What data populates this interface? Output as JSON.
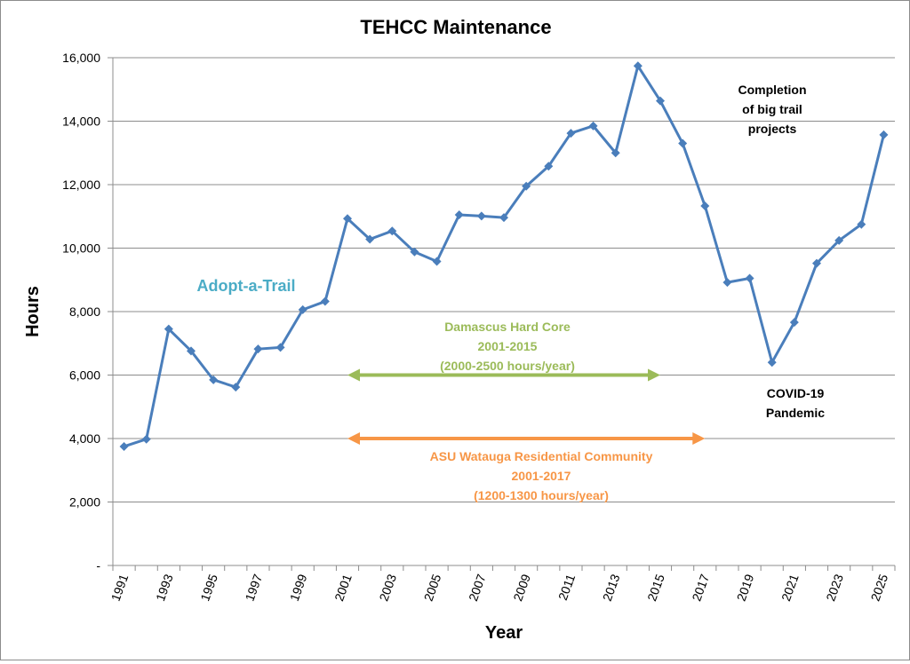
{
  "chart_data": {
    "type": "line",
    "title": "TEHCC Maintenance",
    "xlabel": "Year",
    "ylabel": "Hours",
    "ylim": [
      0,
      16000
    ],
    "ytick_labels": [
      "-",
      "2,000",
      "4,000",
      "6,000",
      "8,000",
      "10,000",
      "12,000",
      "14,000",
      "16,000"
    ],
    "xtick_labels": [
      "1991",
      "1993",
      "1995",
      "1997",
      "1999",
      "2001",
      "2003",
      "2005",
      "2007",
      "2009",
      "2011",
      "2013",
      "2015",
      "2017",
      "2019",
      "2021",
      "2023",
      "2025"
    ],
    "x": [
      1991,
      1992,
      1993,
      1994,
      1995,
      1996,
      1997,
      1998,
      1999,
      2000,
      2001,
      2002,
      2003,
      2004,
      2005,
      2006,
      2007,
      2008,
      2009,
      2010,
      2011,
      2012,
      2013,
      2014,
      2015,
      2016,
      2017,
      2018,
      2019,
      2020,
      2021,
      2022,
      2023,
      2024,
      2025
    ],
    "series": [
      {
        "name": "Hours",
        "color": "#4a7ebb",
        "values": [
          3750,
          3980,
          7450,
          6760,
          5850,
          5620,
          6820,
          6870,
          8060,
          8320,
          10930,
          10280,
          10540,
          9880,
          9580,
          11050,
          11010,
          10960,
          11950,
          12580,
          13620,
          13850,
          13000,
          15740,
          14640,
          13300,
          11330,
          8920,
          9050,
          6400,
          7660,
          9520,
          10240,
          10750,
          13570
        ]
      }
    ],
    "annotations": {
      "adopt": {
        "text": "Adopt-a-Trail",
        "color": "#4bacc6"
      },
      "damascus": {
        "lines": [
          "Damascus Hard Core",
          "2001-2015",
          "(2000-2500 hours/year)"
        ],
        "color": "#9bbb59",
        "x_start": 2001,
        "x_end": 2015,
        "y": 6000
      },
      "asu": {
        "lines": [
          "ASU Watauga Residential Community",
          "2001-2017",
          "(1200-1300 hours/year)"
        ],
        "color": "#f79646",
        "x_start": 2001,
        "x_end": 2017,
        "y": 4000
      },
      "completion": {
        "lines": [
          "Completion",
          "of big trail",
          "projects"
        ],
        "color": "#000000"
      },
      "covid": {
        "lines": [
          "COVID-19",
          "Pandemic"
        ],
        "color": "#000000"
      }
    }
  }
}
